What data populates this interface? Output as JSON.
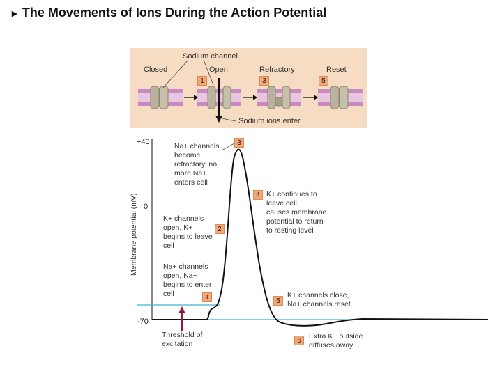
{
  "title": "The Movements of Ions During the Action Potential",
  "title_marker": "►",
  "top_panel": {
    "sodium_channel_label": "Sodium channel",
    "states": [
      "Closed",
      "Open",
      "Refractory",
      "Reset"
    ],
    "state_badges": [
      "1",
      "3",
      "5"
    ],
    "sodium_enter_label": "Sodium ions enter",
    "colors": {
      "panel_bg": "#f7dcc4",
      "membrane": "#c98bbf",
      "channel": "#b9b39d",
      "badge": "#f2a878"
    }
  },
  "graph": {
    "y_ticks": [
      "+40",
      "0",
      "-70"
    ],
    "ylabel": "Membrane potential (mV)",
    "threshold_label": [
      "Threshold of",
      "excitation"
    ],
    "colors": {
      "trace": "#111111",
      "threshold_line": "#3bb8cf",
      "arrow": "#8b1a4a"
    },
    "annotations": [
      {
        "badge": "3",
        "lines": [
          "Na+ channels",
          "become",
          "refractory, no",
          "more Na+",
          "enters cell"
        ]
      },
      {
        "badge": "4",
        "lines": [
          "K+ continues to",
          "leave cell,",
          "causes membrane",
          "potential to return",
          "to resting level"
        ]
      },
      {
        "badge": "2",
        "lines": [
          "K+ channels",
          "open, K+",
          "begins to leave",
          "cell"
        ]
      },
      {
        "badge": "1",
        "lines": [
          "Na+ channels",
          "open, Na+",
          "begins to enter",
          "cell"
        ]
      },
      {
        "badge": "5",
        "lines": [
          "K+ channels close,",
          "Na+ channels reset"
        ]
      },
      {
        "badge": "6",
        "lines": [
          "Extra K+ outside",
          "diffuses away"
        ]
      }
    ]
  }
}
